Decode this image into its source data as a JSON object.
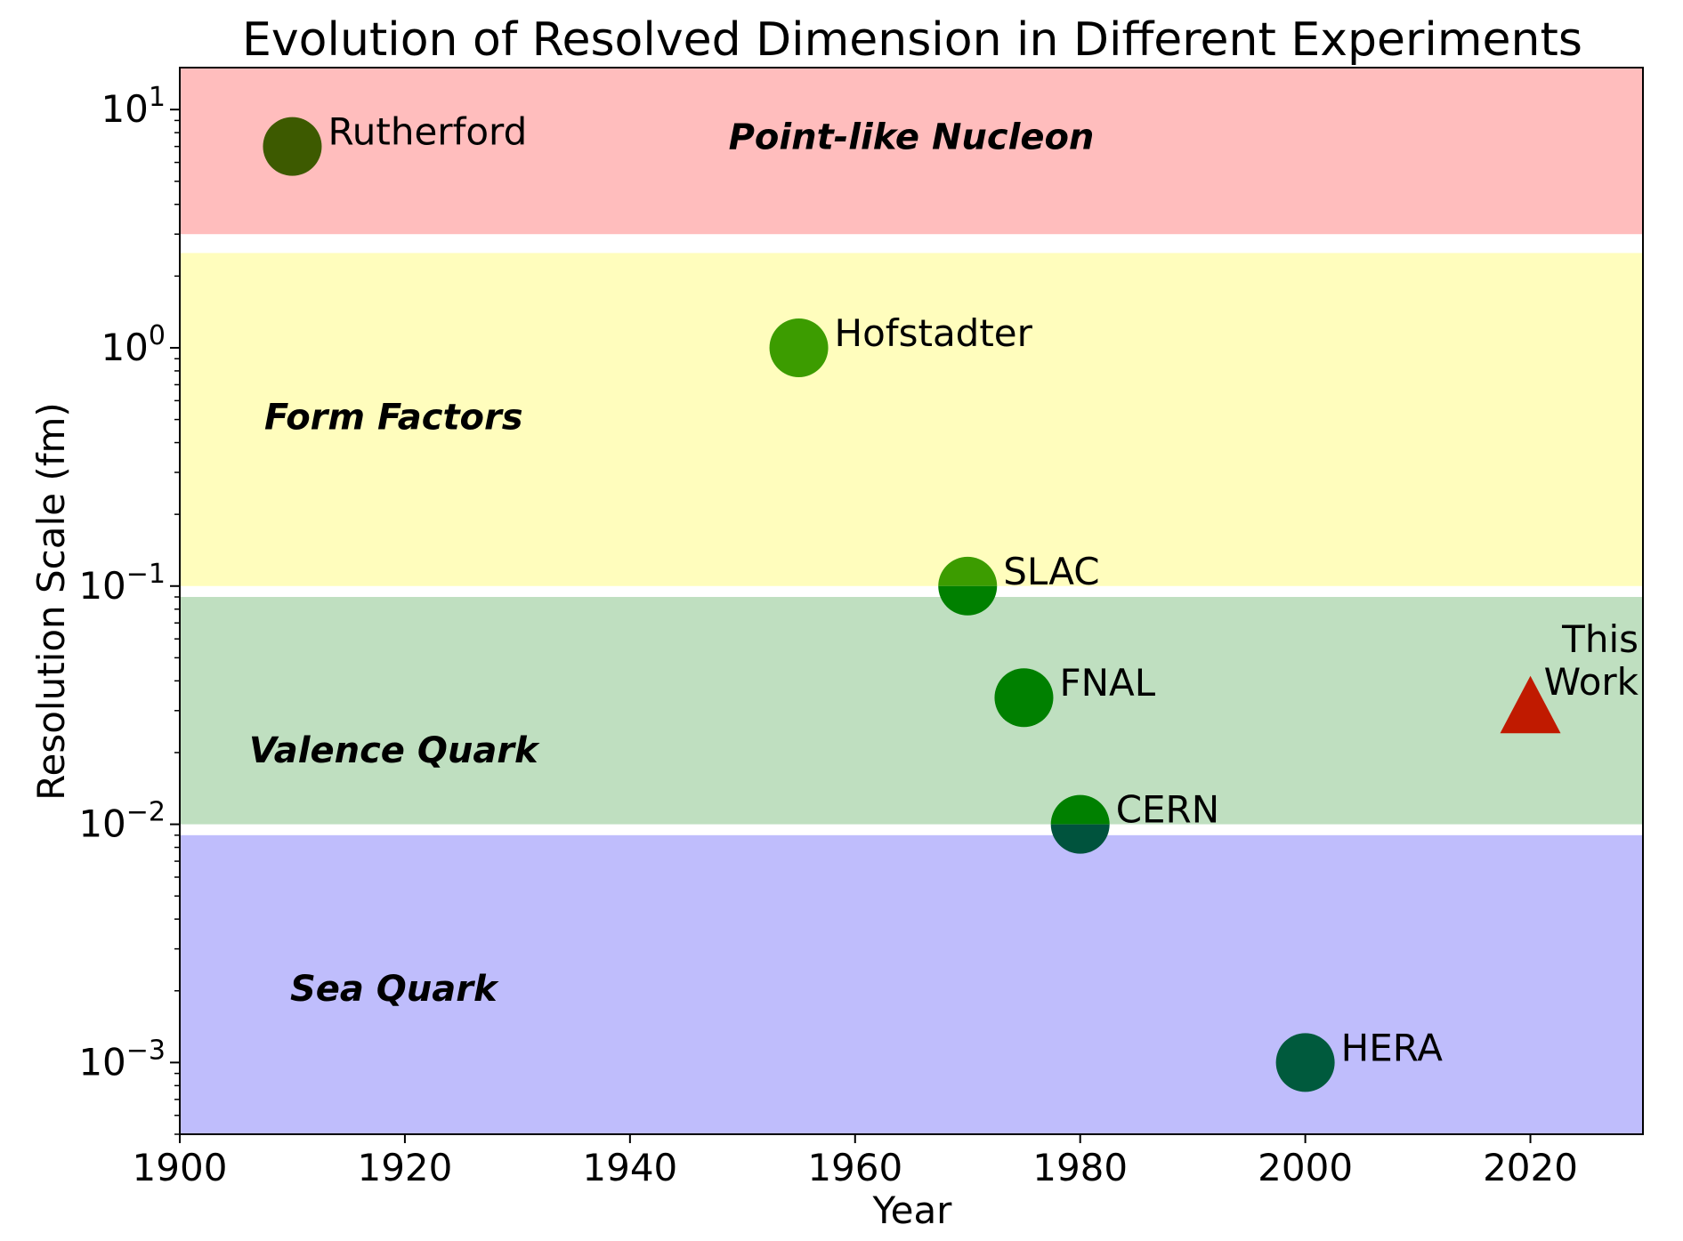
{
  "chart_data": {
    "type": "scatter",
    "title": "Evolution of Resolved Dimension in Different Experiments",
    "xlabel": "Year",
    "ylabel": "Resolution Scale (fm)",
    "xlim": [
      1900,
      2030
    ],
    "ylim": [
      0.0005,
      15
    ],
    "yscale": "log",
    "grid": false,
    "x_ticks": [
      1900,
      1920,
      1940,
      1960,
      1980,
      2000,
      2020
    ],
    "y_ticks": [
      {
        "value": 10,
        "base": "10",
        "exp": "1"
      },
      {
        "value": 1,
        "base": "10",
        "exp": "0"
      },
      {
        "value": 0.1,
        "base": "10",
        "exp": "−1"
      },
      {
        "value": 0.01,
        "base": "10",
        "exp": "−2"
      },
      {
        "value": 0.001,
        "base": "10",
        "exp": "−3"
      }
    ],
    "regions": [
      {
        "label": "Point-like Nucleon",
        "y_from": 3,
        "y_to": 15,
        "color": "#ffbdbd",
        "label_x": 1965,
        "label_y": 7.5
      },
      {
        "label": "Form Factors",
        "y_from": 0.1,
        "y_to": 2.5,
        "color": "#fffdbd",
        "label_x": 1919,
        "label_y": 0.5
      },
      {
        "label": "Valence Quark",
        "y_from": 0.01,
        "y_to": 0.09,
        "color": "#bfdfc0",
        "label_x": 1919,
        "label_y": 0.02
      },
      {
        "label": "Sea Quark",
        "y_from": 0.0005,
        "y_to": 0.009,
        "color": "#bfbdfc",
        "label_x": 1919,
        "label_y": 0.002
      }
    ],
    "points": [
      {
        "label": "Rutherford",
        "x": 1910,
        "y": 7,
        "color": "#3d5a00",
        "marker": "circle"
      },
      {
        "label": "Hofstadter",
        "x": 1955,
        "y": 1,
        "color": "#3c9c00",
        "marker": "circle"
      },
      {
        "label": "SLAC",
        "x": 1970,
        "y": 0.1,
        "color": "#3c9c00",
        "color_lower": "#008000",
        "marker": "circle"
      },
      {
        "label": "FNAL",
        "x": 1975,
        "y": 0.034,
        "color": "#008000",
        "marker": "circle"
      },
      {
        "label": "CERN",
        "x": 1980,
        "y": 0.01,
        "color": "#008000",
        "color_lower": "#00533d",
        "marker": "circle"
      },
      {
        "label": "HERA",
        "x": 2000,
        "y": 0.001,
        "color": "#005a3d",
        "marker": "circle"
      },
      {
        "label": "This Work",
        "label_lines": [
          "This",
          "Work"
        ],
        "x": 2020,
        "y": 0.03,
        "color": "#c01a00",
        "marker": "triangle"
      }
    ]
  }
}
